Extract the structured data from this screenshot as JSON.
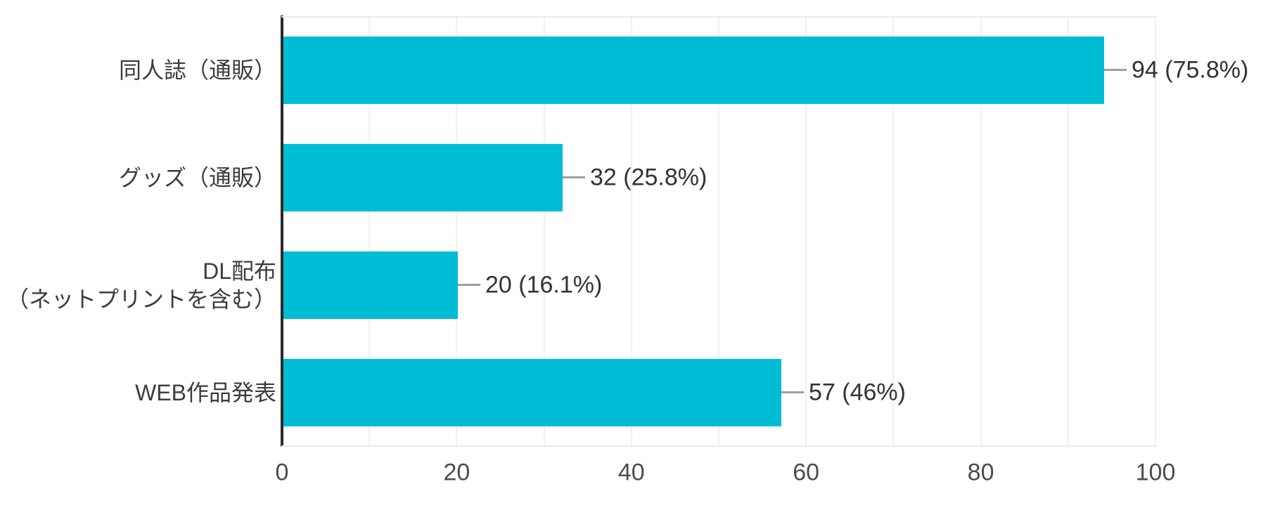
{
  "chart_data": {
    "type": "bar",
    "orientation": "horizontal",
    "title": "",
    "legend": "none",
    "grid": true,
    "categories": [
      "同人誌（通販）",
      "グッズ（通販）",
      "DL配布（ネットプリントを含む）",
      "WEB作品発表"
    ],
    "category_lines": [
      [
        "同人誌（通販）"
      ],
      [
        "グッズ（通販）"
      ],
      [
        "DL配布",
        "（ネットプリントを含む）"
      ],
      [
        "WEB作品発表"
      ]
    ],
    "values": [
      94,
      32,
      20,
      57
    ],
    "percentages": [
      75.8,
      25.8,
      16.1,
      46
    ],
    "value_labels": [
      "94 (75.8%)",
      "32 (25.8%)",
      "20 (16.1%)",
      "57 (46%)"
    ],
    "x_ticks": [
      "0",
      "20",
      "40",
      "60",
      "80",
      "100"
    ],
    "xlim": [
      0,
      100
    ],
    "gridline_step": 10,
    "colors": {
      "bar": "#00bcd4",
      "axis": "#2a2a2a",
      "grid": "#f0f0f0",
      "border": "#ececec",
      "value_text": "#333333",
      "category_text": "#3d3d3d",
      "tick_text": "#4d4d4d",
      "connector": "#9e9e9e",
      "background": "#ffffff"
    }
  }
}
